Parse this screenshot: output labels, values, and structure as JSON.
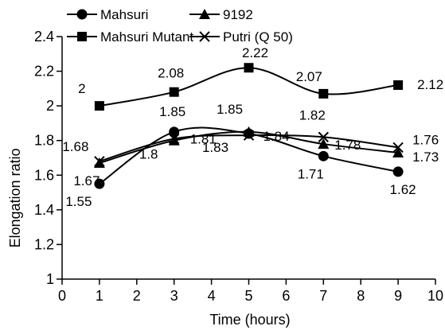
{
  "chart_data": {
    "type": "line",
    "xlabel": "Time (hours)",
    "ylabel": "Elongation ratio",
    "xlim": [
      0,
      10
    ],
    "ylim": [
      1,
      2.4
    ],
    "x_ticks": [
      0,
      1,
      2,
      3,
      4,
      5,
      6,
      7,
      8,
      9,
      10
    ],
    "y_ticks": [
      1,
      1.2,
      1.4,
      1.6,
      1.8,
      2,
      2.2,
      2.4
    ],
    "y_tick_labels": [
      "1",
      "1.2",
      "1.4",
      "1.6",
      "1.8",
      "2",
      "2.2",
      "2.4"
    ],
    "grid": false,
    "smooth": true,
    "legend_position": "top-left",
    "series": [
      {
        "name": "Mahsuri",
        "marker": "circle",
        "x": [
          1,
          3,
          5,
          7,
          9
        ],
        "values": [
          1.55,
          1.85,
          1.84,
          1.71,
          1.62
        ],
        "labels": [
          "1.55",
          "1.85",
          "1.84",
          "1.71",
          "1.62"
        ]
      },
      {
        "name": "9192",
        "marker": "triangle",
        "x": [
          1,
          3,
          5,
          7,
          9
        ],
        "values": [
          1.67,
          1.8,
          1.85,
          1.78,
          1.73
        ],
        "labels": [
          "1.67",
          "1.8",
          "1.85",
          "1.78",
          "1.73"
        ]
      },
      {
        "name": "Mahsuri Mutant",
        "marker": "square",
        "x": [
          1,
          3,
          5,
          7,
          9
        ],
        "values": [
          2.0,
          2.08,
          2.22,
          2.07,
          2.12
        ],
        "labels": [
          "2",
          "2.08",
          "2.22",
          "2.07",
          "2.12"
        ]
      },
      {
        "name": "Putri (Q 50)",
        "marker": "x",
        "x": [
          1,
          3,
          5,
          7,
          9
        ],
        "values": [
          1.68,
          1.81,
          1.83,
          1.82,
          1.76
        ],
        "labels": [
          "1.68",
          "1.81",
          "1.83",
          "1.82",
          "1.76"
        ]
      }
    ],
    "colors": {
      "line": "#000000",
      "background": "#ffffff"
    }
  }
}
